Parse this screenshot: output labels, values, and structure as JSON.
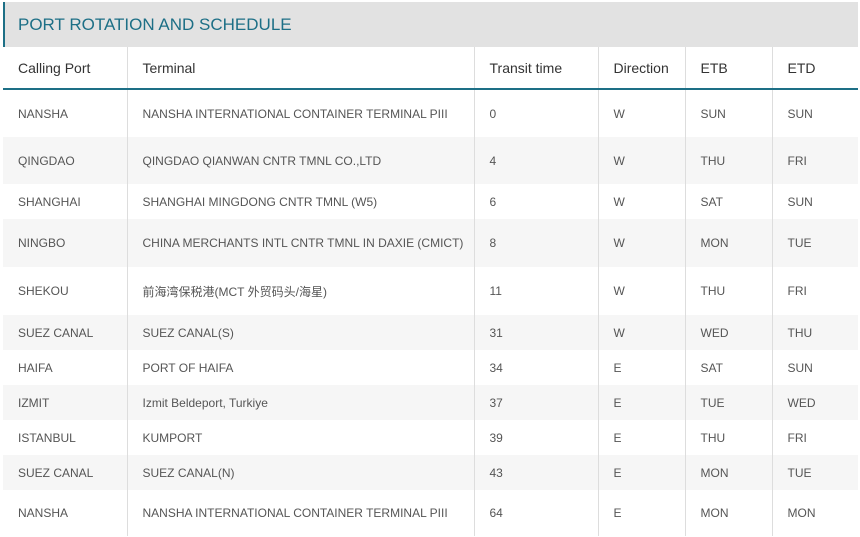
{
  "header": {
    "title": "PORT ROTATION AND SCHEDULE"
  },
  "table": {
    "columns": [
      "Calling Port",
      "Terminal",
      "Transit time",
      "Direction",
      "ETB",
      "ETD"
    ],
    "rows": [
      [
        "NANSHA",
        "NANSHA INTERNATIONAL CONTAINER TERMINAL PIII",
        "0",
        "W",
        "SUN",
        "SUN"
      ],
      [
        "QINGDAO",
        "QINGDAO QIANWAN CNTR TMNL CO.,LTD",
        "4",
        "W",
        "THU",
        "FRI"
      ],
      [
        "SHANGHAI",
        "SHANGHAI MINGDONG CNTR TMNL (W5)",
        "6",
        "W",
        "SAT",
        "SUN"
      ],
      [
        "NINGBO",
        "CHINA MERCHANTS INTL CNTR TMNL IN DAXIE (CMICT)",
        "8",
        "W",
        "MON",
        "TUE"
      ],
      [
        "SHEKOU",
        "前海湾保税港(MCT 外贸码头/海星)",
        "11",
        "W",
        "THU",
        "FRI"
      ],
      [
        "SUEZ CANAL",
        "SUEZ CANAL(S)",
        "31",
        "W",
        "WED",
        "THU"
      ],
      [
        "HAIFA",
        "PORT OF HAIFA",
        "34",
        "E",
        "SAT",
        "SUN"
      ],
      [
        "IZMIT",
        "Izmit Beldeport, Turkiye",
        "37",
        "E",
        "TUE",
        "WED"
      ],
      [
        "ISTANBUL",
        "KUMPORT",
        "39",
        "E",
        "THU",
        "FRI"
      ],
      [
        "SUEZ CANAL",
        "SUEZ CANAL(N)",
        "43",
        "E",
        "MON",
        "TUE"
      ],
      [
        "NANSHA",
        "NANSHA INTERNATIONAL CONTAINER TERMINAL PIII",
        "64",
        "E",
        "MON",
        "MON"
      ]
    ]
  }
}
